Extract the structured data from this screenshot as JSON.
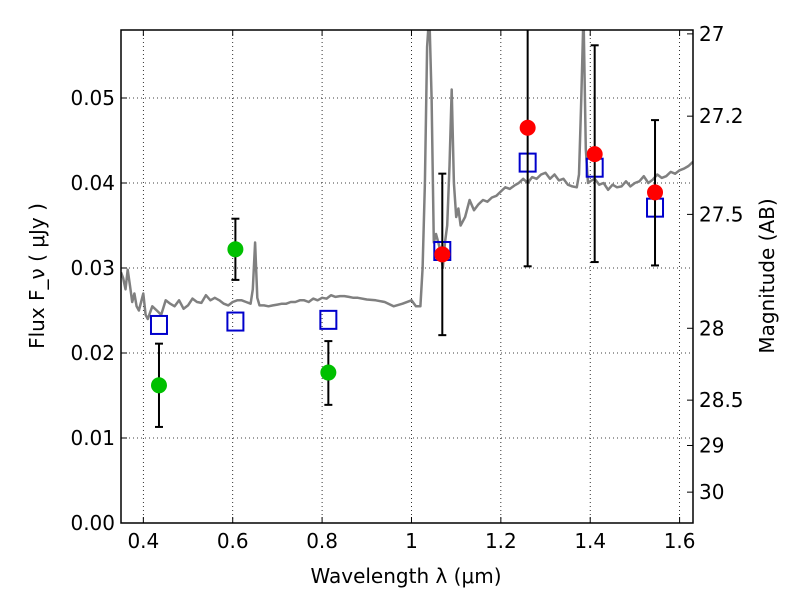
{
  "chart_data": {
    "type": "scatter",
    "xlabel": "Wavelength  λ (μm)",
    "ylabel_left": "Flux  F_ν  ( μJy )",
    "ylabel_right": "Magnitude (AB)",
    "xlim": [
      0.35,
      1.63
    ],
    "ylim": [
      0.0,
      0.058
    ],
    "grid": true,
    "x_ticks": [
      0.4,
      0.6,
      0.8,
      1.0,
      1.2,
      1.4,
      1.6
    ],
    "x_tick_labels": [
      "0.4",
      "0.6",
      "0.8",
      "1",
      "1.2",
      "1.4",
      "1.6"
    ],
    "y_ticks": [
      0.0,
      0.01,
      0.02,
      0.03,
      0.04,
      0.05
    ],
    "y_tick_labels": [
      "0.00",
      "0.01",
      "0.02",
      "0.03",
      "0.04",
      "0.05"
    ],
    "right_ticks": [
      {
        "mag": 27.0,
        "label": "27"
      },
      {
        "mag": 27.2,
        "label": "27.2"
      },
      {
        "mag": 27.5,
        "label": "27.5"
      },
      {
        "mag": 28.0,
        "label": "28"
      },
      {
        "mag": 28.5,
        "label": "28.5"
      },
      {
        "mag": 29.0,
        "label": "29"
      },
      {
        "mag": 30.0,
        "label": "30"
      }
    ],
    "series": [
      {
        "marker": "circle",
        "color": "#00c000",
        "points": [
          {
            "x": 0.435,
            "y": 0.0162,
            "err_lo": 0.0113,
            "err_hi": 0.0211
          },
          {
            "x": 0.606,
            "y": 0.0322,
            "err_lo": 0.0286,
            "err_hi": 0.0358
          },
          {
            "x": 0.814,
            "y": 0.0177,
            "err_lo": 0.0139,
            "err_hi": 0.0214
          }
        ]
      },
      {
        "marker": "circle",
        "color": "#ff0000",
        "points": [
          {
            "x": 1.069,
            "y": 0.0316,
            "err_lo": 0.0221,
            "err_hi": 0.0411
          },
          {
            "x": 1.26,
            "y": 0.0465,
            "err_lo": 0.0302,
            "err_hi": 0.06
          },
          {
            "x": 1.41,
            "y": 0.0434,
            "err_lo": 0.0307,
            "err_hi": 0.0562
          },
          {
            "x": 1.545,
            "y": 0.0389,
            "err_lo": 0.0303,
            "err_hi": 0.0474
          }
        ]
      },
      {
        "marker": "open-square",
        "color": "#0000cc",
        "points": [
          {
            "x": 0.435,
            "y": 0.0233
          },
          {
            "x": 0.606,
            "y": 0.0237
          },
          {
            "x": 0.814,
            "y": 0.0239
          },
          {
            "x": 1.069,
            "y": 0.032
          },
          {
            "x": 1.26,
            "y": 0.0424
          },
          {
            "x": 1.41,
            "y": 0.0418
          },
          {
            "x": 1.545,
            "y": 0.0371
          }
        ]
      }
    ],
    "spectrum": {
      "color": "#808080",
      "x": [
        0.35,
        0.355,
        0.36,
        0.365,
        0.37,
        0.375,
        0.38,
        0.385,
        0.39,
        0.4,
        0.405,
        0.41,
        0.42,
        0.43,
        0.44,
        0.45,
        0.46,
        0.47,
        0.48,
        0.49,
        0.5,
        0.51,
        0.52,
        0.53,
        0.54,
        0.55,
        0.56,
        0.57,
        0.58,
        0.59,
        0.6,
        0.61,
        0.62,
        0.63,
        0.64,
        0.645,
        0.65,
        0.655,
        0.66,
        0.67,
        0.68,
        0.69,
        0.7,
        0.71,
        0.72,
        0.73,
        0.74,
        0.75,
        0.76,
        0.77,
        0.78,
        0.79,
        0.8,
        0.81,
        0.82,
        0.83,
        0.84,
        0.85,
        0.86,
        0.87,
        0.88,
        0.9,
        0.92,
        0.94,
        0.96,
        0.98,
        1.0,
        1.01,
        1.02,
        1.025,
        1.03,
        1.035,
        1.04,
        1.045,
        1.05,
        1.055,
        1.06,
        1.065,
        1.07,
        1.075,
        1.08,
        1.085,
        1.09,
        1.095,
        1.1,
        1.105,
        1.11,
        1.12,
        1.13,
        1.14,
        1.15,
        1.16,
        1.17,
        1.18,
        1.19,
        1.2,
        1.21,
        1.22,
        1.23,
        1.24,
        1.25,
        1.26,
        1.27,
        1.28,
        1.29,
        1.3,
        1.31,
        1.32,
        1.33,
        1.34,
        1.35,
        1.36,
        1.37,
        1.375,
        1.38,
        1.385,
        1.39,
        1.395,
        1.4,
        1.41,
        1.42,
        1.43,
        1.44,
        1.45,
        1.46,
        1.47,
        1.48,
        1.49,
        1.5,
        1.51,
        1.52,
        1.53,
        1.54,
        1.55,
        1.56,
        1.57,
        1.58,
        1.59,
        1.6,
        1.61,
        1.62,
        1.63
      ],
      "y": [
        0.0295,
        0.0288,
        0.0275,
        0.0298,
        0.028,
        0.026,
        0.027,
        0.0255,
        0.025,
        0.027,
        0.0245,
        0.024,
        0.0255,
        0.025,
        0.0245,
        0.0262,
        0.0258,
        0.0255,
        0.0262,
        0.0252,
        0.0256,
        0.0264,
        0.026,
        0.0259,
        0.0268,
        0.0262,
        0.0265,
        0.0262,
        0.0258,
        0.0256,
        0.026,
        0.0262,
        0.0262,
        0.026,
        0.0258,
        0.0275,
        0.033,
        0.0265,
        0.0256,
        0.0256,
        0.0255,
        0.0256,
        0.0257,
        0.0258,
        0.0258,
        0.026,
        0.026,
        0.0262,
        0.0262,
        0.026,
        0.0264,
        0.0262,
        0.0265,
        0.0264,
        0.0268,
        0.0266,
        0.0267,
        0.0267,
        0.0266,
        0.0265,
        0.0265,
        0.0263,
        0.0262,
        0.026,
        0.0255,
        0.0258,
        0.0262,
        0.0255,
        0.0255,
        0.03,
        0.04,
        0.056,
        0.06,
        0.05,
        0.033,
        0.034,
        0.033,
        0.032,
        0.03,
        0.033,
        0.035,
        0.042,
        0.051,
        0.04,
        0.036,
        0.037,
        0.035,
        0.036,
        0.038,
        0.0368,
        0.0375,
        0.038,
        0.0378,
        0.0383,
        0.0385,
        0.039,
        0.0395,
        0.0393,
        0.0397,
        0.04,
        0.0405,
        0.04,
        0.0407,
        0.0405,
        0.041,
        0.0412,
        0.0405,
        0.041,
        0.0403,
        0.0405,
        0.0398,
        0.0396,
        0.0395,
        0.041,
        0.05,
        0.06,
        0.044,
        0.04,
        0.0402,
        0.0405,
        0.0398,
        0.04,
        0.0392,
        0.0398,
        0.0395,
        0.0396,
        0.0402,
        0.0396,
        0.04,
        0.0402,
        0.0408,
        0.04,
        0.0404,
        0.041,
        0.0406,
        0.0408,
        0.0413,
        0.0411,
        0.0415,
        0.0417,
        0.042,
        0.0425
      ]
    }
  }
}
